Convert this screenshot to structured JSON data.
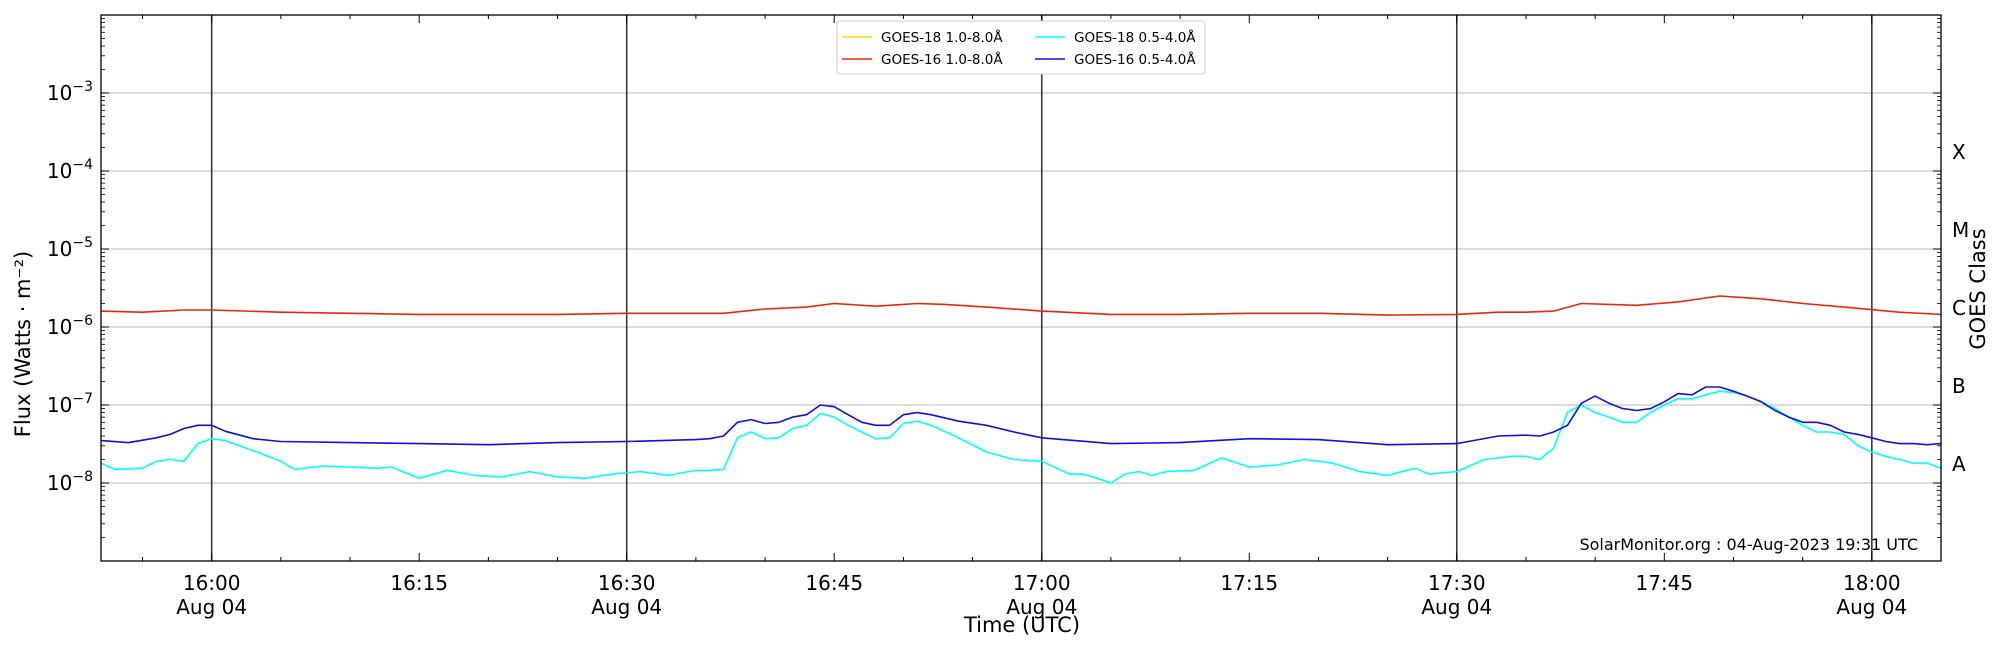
{
  "chart_data": {
    "type": "line",
    "xlabel": "Time (UTC)",
    "ylabel": "Flux (Watts · m⁻²)",
    "right_axis_label": "GOES Class",
    "y_scale": "log",
    "ylim": [
      1e-09,
      0.01
    ],
    "x_range": [
      "15:52",
      "18:05"
    ],
    "x_ticks": [
      {
        "time": "16:00",
        "date": "Aug 04"
      },
      {
        "time": "16:15",
        "date": ""
      },
      {
        "time": "16:30",
        "date": "Aug 04"
      },
      {
        "time": "16:45",
        "date": ""
      },
      {
        "time": "17:00",
        "date": "Aug 04"
      },
      {
        "time": "17:15",
        "date": ""
      },
      {
        "time": "17:30",
        "date": "Aug 04"
      },
      {
        "time": "17:45",
        "date": ""
      },
      {
        "time": "18:00",
        "date": "Aug 04"
      }
    ],
    "y_ticks": [
      {
        "value": 1e-08,
        "base": "10",
        "exp": "−8"
      },
      {
        "value": 1e-07,
        "base": "10",
        "exp": "−7"
      },
      {
        "value": 1e-06,
        "base": "10",
        "exp": "−6"
      },
      {
        "value": 1e-05,
        "base": "10",
        "exp": "−5"
      },
      {
        "value": 0.0001,
        "base": "10",
        "exp": "−4"
      },
      {
        "value": 0.001,
        "base": "10",
        "exp": "−3"
      }
    ],
    "goes_classes": [
      {
        "label": "A",
        "level": 1.8e-08
      },
      {
        "label": "B",
        "level": 1.8e-07
      },
      {
        "label": "C",
        "level": 1.8e-06
      },
      {
        "label": "M",
        "level": 1.8e-05
      },
      {
        "label": "X",
        "level": 0.00018
      }
    ],
    "grid": true,
    "legend_placement": "top-center",
    "credit": "SolarMonitor.org : 04-Aug-2023 19:31 UTC",
    "series": [
      {
        "name": "GOES-18 1.0-8.0Å",
        "color": "#ffd700",
        "x": [],
        "y": []
      },
      {
        "name": "GOES-16 1.0-8.0Å",
        "color": "#e8290b",
        "x": [
          "15:52",
          "15:55",
          "15:58",
          "16:00",
          "16:05",
          "16:10",
          "16:15",
          "16:20",
          "16:25",
          "16:30",
          "16:35",
          "16:37",
          "16:40",
          "16:43",
          "16:45",
          "16:48",
          "16:51",
          "16:53",
          "16:56",
          "17:00",
          "17:05",
          "17:10",
          "17:15",
          "17:20",
          "17:25",
          "17:30",
          "17:33",
          "17:35",
          "17:37",
          "17:39",
          "17:43",
          "17:46",
          "17:49",
          "17:52",
          "17:55",
          "17:58",
          "18:02",
          "18:05"
        ],
        "y": [
          1.6e-06,
          1.55e-06,
          1.65e-06,
          1.65e-06,
          1.55e-06,
          1.5e-06,
          1.45e-06,
          1.45e-06,
          1.45e-06,
          1.5e-06,
          1.5e-06,
          1.5e-06,
          1.7e-06,
          1.8e-06,
          2e-06,
          1.85e-06,
          2e-06,
          1.95e-06,
          1.8e-06,
          1.6e-06,
          1.45e-06,
          1.45e-06,
          1.5e-06,
          1.5e-06,
          1.42e-06,
          1.45e-06,
          1.55e-06,
          1.55e-06,
          1.6e-06,
          2e-06,
          1.9e-06,
          2.1e-06,
          2.5e-06,
          2.3e-06,
          2e-06,
          1.8e-06,
          1.55e-06,
          1.45e-06
        ]
      },
      {
        "name": "GOES-18 0.5-4.0Å",
        "color": "#00ffff",
        "x": [
          "15:52",
          "15:53",
          "15:55",
          "15:56",
          "15:57",
          "15:58",
          "15:59",
          "16:00",
          "16:01",
          "16:03",
          "16:05",
          "16:06",
          "16:08",
          "16:10",
          "16:12",
          "16:13",
          "16:15",
          "16:17",
          "16:19",
          "16:21",
          "16:23",
          "16:25",
          "16:27",
          "16:29",
          "16:31",
          "16:33",
          "16:35",
          "16:36",
          "16:37",
          "16:38",
          "16:39",
          "16:40",
          "16:41",
          "16:42",
          "16:43",
          "16:44",
          "16:45",
          "16:46",
          "16:47",
          "16:48",
          "16:49",
          "16:50",
          "16:51",
          "16:52",
          "16:54",
          "16:56",
          "16:58",
          "17:00",
          "17:02",
          "17:03",
          "17:04",
          "17:05",
          "17:06",
          "17:07",
          "17:08",
          "17:09",
          "17:11",
          "17:13",
          "17:15",
          "17:17",
          "17:19",
          "17:21",
          "17:23",
          "17:25",
          "17:27",
          "17:28",
          "17:30",
          "17:32",
          "17:34",
          "17:35",
          "17:36",
          "17:37",
          "17:38",
          "17:39",
          "17:40",
          "17:41",
          "17:42",
          "17:43",
          "17:44",
          "17:45",
          "17:46",
          "17:47",
          "17:48",
          "17:49",
          "17:50",
          "17:51",
          "17:52",
          "17:53",
          "17:54",
          "17:55",
          "17:56",
          "17:57",
          "17:58",
          "17:59",
          "18:00",
          "18:01",
          "18:02",
          "18:03",
          "18:04",
          "18:05"
        ],
        "y": [
          1.8e-08,
          1.5e-08,
          1.55e-08,
          1.9e-08,
          2e-08,
          1.9e-08,
          3.2e-08,
          3.7e-08,
          3.5e-08,
          2.6e-08,
          1.9e-08,
          1.5e-08,
          1.65e-08,
          1.6e-08,
          1.55e-08,
          1.6e-08,
          1.15e-08,
          1.45e-08,
          1.25e-08,
          1.2e-08,
          1.4e-08,
          1.2e-08,
          1.15e-08,
          1.3e-08,
          1.4e-08,
          1.25e-08,
          1.45e-08,
          1.45e-08,
          1.5e-08,
          3.8e-08,
          4.5e-08,
          3.7e-08,
          3.8e-08,
          5e-08,
          5.5e-08,
          7.8e-08,
          7e-08,
          5.5e-08,
          4.5e-08,
          3.7e-08,
          3.8e-08,
          5.8e-08,
          6.2e-08,
          5.5e-08,
          3.8e-08,
          2.5e-08,
          2e-08,
          1.9e-08,
          1.3e-08,
          1.3e-08,
          1.15e-08,
          1e-08,
          1.3e-08,
          1.4e-08,
          1.25e-08,
          1.4e-08,
          1.45e-08,
          2.1e-08,
          1.6e-08,
          1.7e-08,
          2e-08,
          1.8e-08,
          1.4e-08,
          1.25e-08,
          1.55e-08,
          1.3e-08,
          1.4e-08,
          2e-08,
          2.2e-08,
          2.2e-08,
          2e-08,
          2.8e-08,
          8e-08,
          1e-07,
          8e-08,
          7e-08,
          6e-08,
          6e-08,
          8e-08,
          1e-07,
          1.2e-07,
          1.2e-07,
          1.35e-07,
          1.5e-07,
          1.45e-07,
          1.3e-07,
          1.1e-07,
          9e-08,
          7e-08,
          5.5e-08,
          4.5e-08,
          4.5e-08,
          4.2e-08,
          3e-08,
          2.5e-08,
          2.2e-08,
          2e-08,
          1.8e-08,
          1.8e-08,
          1.55e-08
        ]
      },
      {
        "name": "GOES-16 0.5-4.0Å",
        "color": "#1010e0",
        "x": [
          "15:52",
          "15:54",
          "15:56",
          "15:57",
          "15:58",
          "15:59",
          "16:00",
          "16:01",
          "16:03",
          "16:05",
          "16:10",
          "16:15",
          "16:20",
          "16:25",
          "16:30",
          "16:35",
          "16:36",
          "16:37",
          "16:38",
          "16:39",
          "16:40",
          "16:41",
          "16:42",
          "16:43",
          "16:44",
          "16:45",
          "16:46",
          "16:47",
          "16:48",
          "16:49",
          "16:50",
          "16:51",
          "16:52",
          "16:54",
          "16:56",
          "16:58",
          "17:00",
          "17:05",
          "17:10",
          "17:15",
          "17:20",
          "17:25",
          "17:30",
          "17:33",
          "17:35",
          "17:36",
          "17:37",
          "17:38",
          "17:39",
          "17:40",
          "17:41",
          "17:42",
          "17:43",
          "17:44",
          "17:45",
          "17:46",
          "17:47",
          "17:48",
          "17:49",
          "17:50",
          "17:51",
          "17:52",
          "17:53",
          "17:54",
          "17:55",
          "17:56",
          "17:57",
          "17:58",
          "17:59",
          "18:00",
          "18:01",
          "18:02",
          "18:03",
          "18:04",
          "18:05"
        ],
        "y": [
          3.5e-08,
          3.3e-08,
          3.8e-08,
          4.2e-08,
          5e-08,
          5.5e-08,
          5.5e-08,
          4.6e-08,
          3.7e-08,
          3.4e-08,
          3.3e-08,
          3.2e-08,
          3.1e-08,
          3.3e-08,
          3.4e-08,
          3.6e-08,
          3.7e-08,
          4e-08,
          6e-08,
          6.5e-08,
          5.8e-08,
          6e-08,
          7e-08,
          7.5e-08,
          1e-07,
          9.5e-08,
          7.5e-08,
          6e-08,
          5.5e-08,
          5.5e-08,
          7.5e-08,
          8e-08,
          7.5e-08,
          6.2e-08,
          5.5e-08,
          4.5e-08,
          3.8e-08,
          3.2e-08,
          3.3e-08,
          3.7e-08,
          3.6e-08,
          3.1e-08,
          3.2e-08,
          4e-08,
          4.1e-08,
          4e-08,
          4.5e-08,
          5.5e-08,
          1.05e-07,
          1.3e-07,
          1.05e-07,
          9e-08,
          8.5e-08,
          9e-08,
          1.1e-07,
          1.4e-07,
          1.35e-07,
          1.7e-07,
          1.7e-07,
          1.5e-07,
          1.3e-07,
          1.1e-07,
          8.5e-08,
          7e-08,
          6e-08,
          6e-08,
          5.5e-08,
          4.5e-08,
          4.2e-08,
          3.8e-08,
          3.4e-08,
          3.2e-08,
          3.2e-08,
          3.1e-08,
          3.2e-08
        ]
      }
    ]
  }
}
